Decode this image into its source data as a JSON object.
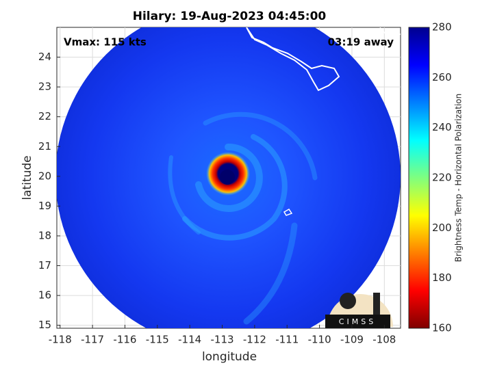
{
  "chart_data": {
    "type": "image",
    "title": "Hilary: 19-Aug-2023 04:45:00",
    "annotations": [
      "Vmax: 115 kts",
      "03:19 away"
    ],
    "xlabel": "longitude",
    "ylabel": "latitude",
    "xlim": [
      -118.1,
      -107.5
    ],
    "xticks": [
      -118,
      -117,
      -116,
      -115,
      -114,
      -113,
      -112,
      -111,
      -110,
      -109,
      -108
    ],
    "ylim": [
      14.9,
      25
    ],
    "yticks": [
      15,
      16,
      17,
      18,
      19,
      20,
      21,
      22,
      23,
      24
    ],
    "grid": true,
    "colorbar": {
      "label": "Brightness Temp - Horizontal Polarization",
      "colormap": "jet",
      "lim": [
        160,
        280
      ],
      "ticks": [
        160,
        180,
        200,
        220,
        240,
        260,
        280
      ]
    }
  },
  "logo": {
    "text": "CIMSS"
  }
}
